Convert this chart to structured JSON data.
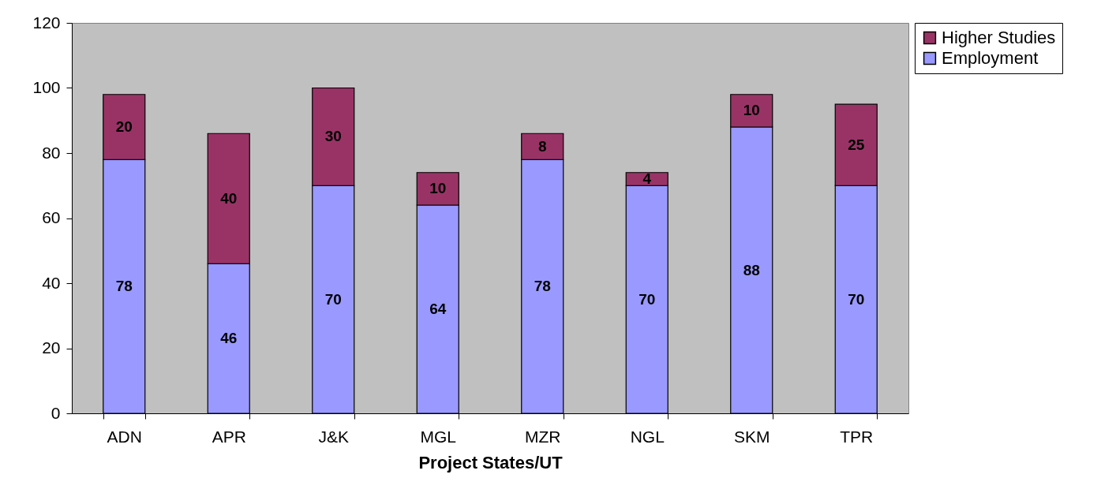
{
  "chart_data": {
    "type": "bar",
    "xlabel": "Project States/UT",
    "categories": [
      "ADN",
      "APR",
      "J&K",
      "MGL",
      "MZR",
      "NGL",
      "SKM",
      "TPR"
    ],
    "series": [
      {
        "name": "Employment",
        "color": "#9999ff",
        "values": [
          78,
          46,
          70,
          64,
          78,
          70,
          88,
          70
        ]
      },
      {
        "name": "Higher Studies",
        "color": "#993366",
        "values": [
          20,
          40,
          30,
          10,
          8,
          4,
          10,
          25
        ]
      }
    ],
    "stacked": true,
    "data_labels": true,
    "ylim": [
      0,
      120
    ],
    "yticks": [
      0,
      20,
      40,
      60,
      80,
      100,
      120
    ],
    "grid": false,
    "legend": "right"
  }
}
